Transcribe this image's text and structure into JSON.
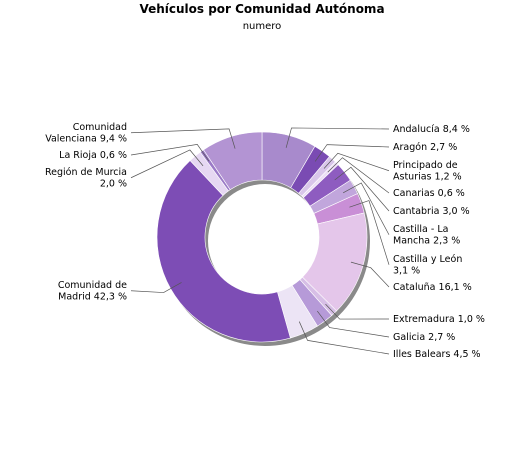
{
  "chart_data": {
    "type": "pie",
    "title": "Vehículos por Comunidad Autónoma",
    "subtitle": "numero",
    "donut": true,
    "slices": [
      {
        "label": [
          "Andalucía 8,4 %"
        ],
        "value": 8.4,
        "color": "#a88acc"
      },
      {
        "label": [
          "Aragón 2,7 %"
        ],
        "value": 2.7,
        "color": "#7a4bb3"
      },
      {
        "label": [
          "Principado de",
          "Asturias 1,2 %"
        ],
        "value": 1.2,
        "color": "#d9c6ea"
      },
      {
        "label": [
          "Canarias 0,6 %"
        ],
        "value": 0.6,
        "color": "#ecdff5"
      },
      {
        "label": [
          "Cantabria 3,0 %"
        ],
        "value": 3.0,
        "color": "#8e5cc0"
      },
      {
        "label": [
          "Castilla - La",
          "Mancha 2,3 %"
        ],
        "value": 2.3,
        "color": "#c1a6dc"
      },
      {
        "label": [
          "Castilla y León",
          "3,1 %"
        ],
        "value": 3.1,
        "color": "#c98fd6"
      },
      {
        "label": [
          "Cataluña 16,1 %"
        ],
        "value": 16.1,
        "color": "#e4c6ea"
      },
      {
        "label": [
          "Extremadura 1,0 %"
        ],
        "value": 1.0,
        "color": "#d7bfe6"
      },
      {
        "label": [
          "Galicia 2,7 %"
        ],
        "value": 2.7,
        "color": "#b69ad8"
      },
      {
        "label": [
          "Illes Balears 4,5 %"
        ],
        "value": 4.5,
        "color": "#ece4f5"
      },
      {
        "label": [
          "Comunidad de",
          "Madrid 42,3 %"
        ],
        "value": 42.3,
        "color": "#7d4db5"
      },
      {
        "label": [
          "Región de Murcia",
          "2,0 %"
        ],
        "value": 2.0,
        "color": "#e6d8f2"
      },
      {
        "label": [
          "La Rioja 0,6 %"
        ],
        "value": 0.6,
        "color": "#9b7ac7"
      },
      {
        "label": [
          "Comunidad",
          "Valenciana 9,4 %"
        ],
        "value": 9.4,
        "color": "#b394d3"
      }
    ]
  }
}
